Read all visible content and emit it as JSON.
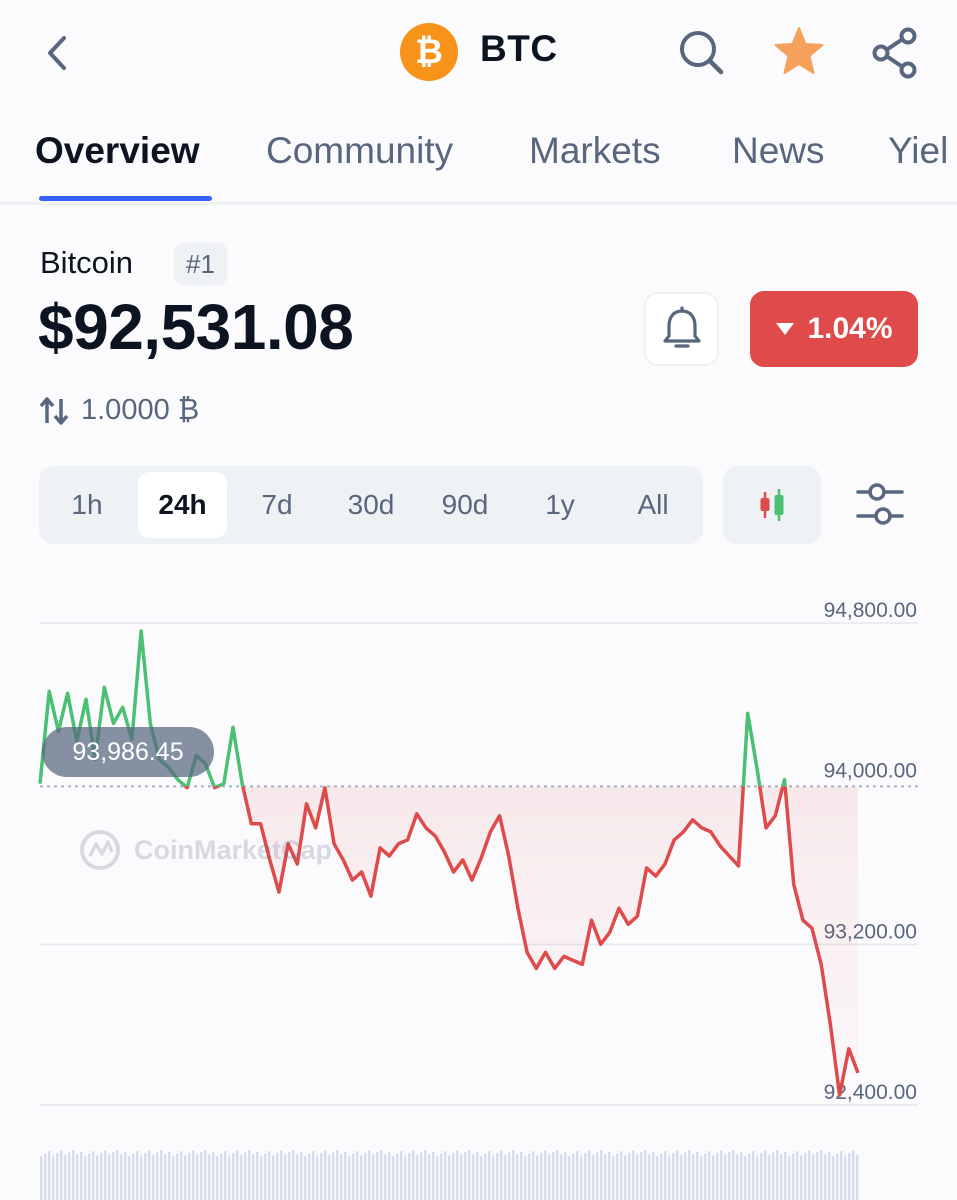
{
  "header": {
    "symbol": "BTC",
    "logo_glyph": "₿",
    "icons": [
      "back-chevron-icon",
      "bitcoin-logo-icon",
      "search-icon",
      "star-icon",
      "share-icon"
    ],
    "star_color": "#f5a15b"
  },
  "tabs": [
    {
      "label": "Overview",
      "active": true
    },
    {
      "label": "Community",
      "active": false
    },
    {
      "label": "Markets",
      "active": false
    },
    {
      "label": "News",
      "active": false
    },
    {
      "label": "Yiel",
      "active": false
    }
  ],
  "coin": {
    "name": "Bitcoin",
    "rank": "#1",
    "price": "$92,531.08",
    "change_pct": "1.04%",
    "change_direction": "down",
    "change_color": "#df4a4a",
    "conversion": "1.0000 ₿"
  },
  "ranges": [
    {
      "label": "1h",
      "active": false
    },
    {
      "label": "24h",
      "active": true
    },
    {
      "label": "7d",
      "active": false
    },
    {
      "label": "30d",
      "active": false
    },
    {
      "label": "90d",
      "active": false
    },
    {
      "label": "1y",
      "active": false
    },
    {
      "label": "All",
      "active": false
    }
  ],
  "chart": {
    "reference_label": "93,986.45",
    "watermark": "CoinMarketCap",
    "up_color": "#4bbf73",
    "down_color": "#df4a4a"
  },
  "chart_data": {
    "type": "line",
    "title": "",
    "xlabel": "",
    "ylabel": "",
    "ylim": [
      92380,
      94840
    ],
    "y_ticks": [
      "94,800.00",
      "94,000.00",
      "93,200.00",
      "92,400.00"
    ],
    "y_tick_values": [
      94800,
      94000,
      93200,
      92400
    ],
    "reference_value": 93986.45,
    "series": [
      {
        "values": [
          94000,
          94460,
          94260,
          94450,
          94210,
          94420,
          94120,
          94480,
          94300,
          94380,
          94220,
          94760,
          94300,
          94120,
          94080,
          94020,
          93980,
          94140,
          94100,
          93980,
          94000,
          94280,
          94000,
          93800,
          93800,
          93620,
          93460,
          93700,
          93600,
          93900,
          93780,
          93980,
          93700,
          93620,
          93520,
          93560,
          93440,
          93680,
          93640,
          93700,
          93720,
          93850,
          93780,
          93740,
          93660,
          93560,
          93620,
          93520,
          93630,
          93760,
          93840,
          93640,
          93380,
          93160,
          93080,
          93160,
          93080,
          93140,
          93120,
          93100,
          93320,
          93200,
          93260,
          93380,
          93300,
          93340,
          93580,
          93540,
          93600,
          93720,
          93760,
          93820,
          93780,
          93760,
          93690,
          93640,
          93590,
          94350,
          94080,
          93780,
          93840,
          94020,
          93500,
          93320,
          93280,
          93100,
          92800,
          92450,
          92680,
          92560
        ]
      }
    ],
    "volume": "present"
  }
}
